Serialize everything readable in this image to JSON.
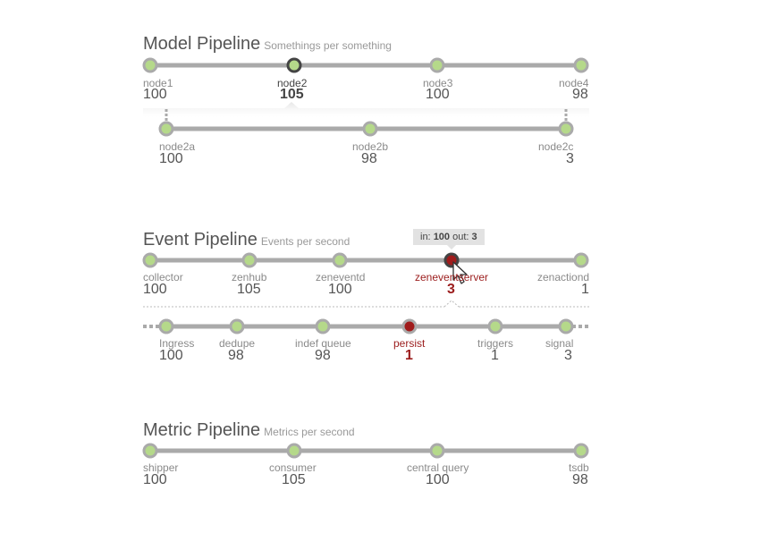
{
  "model": {
    "title": "Model Pipeline",
    "subtitle": "Somethings per something",
    "nodes": [
      {
        "label": "node1",
        "value": "100"
      },
      {
        "label": "node2",
        "value": "105"
      },
      {
        "label": "node3",
        "value": "100"
      },
      {
        "label": "node4",
        "value": "98"
      }
    ],
    "sub_nodes": [
      {
        "label": "node2a",
        "value": "100"
      },
      {
        "label": "node2b",
        "value": "98"
      },
      {
        "label": "node2c",
        "value": "3"
      }
    ]
  },
  "event": {
    "title": "Event Pipeline",
    "subtitle": "Events per second",
    "tooltip": {
      "in_label": "in:",
      "in_value": "100",
      "out_label": "out:",
      "out_value": "3"
    },
    "nodes": [
      {
        "label": "collector",
        "value": "100"
      },
      {
        "label": "zenhub",
        "value": "105"
      },
      {
        "label": "zeneventd",
        "value": "100"
      },
      {
        "label": "zeneventserver",
        "value": "3"
      },
      {
        "label": "zenactiond",
        "value": "1"
      }
    ],
    "sub_nodes": [
      {
        "label": "Ingress",
        "value": "100"
      },
      {
        "label": "dedupe",
        "value": "98"
      },
      {
        "label": "indef queue",
        "value": "98"
      },
      {
        "label": "persist",
        "value": "1"
      },
      {
        "label": "triggers",
        "value": "1"
      },
      {
        "label": "signal",
        "value": "3"
      }
    ]
  },
  "metric": {
    "title": "Metric Pipeline",
    "subtitle": "Metrics per second",
    "nodes": [
      {
        "label": "shipper",
        "value": "100"
      },
      {
        "label": "consumer",
        "value": "105"
      },
      {
        "label": "central query",
        "value": "100"
      },
      {
        "label": "tsdb",
        "value": "98"
      }
    ]
  },
  "colors": {
    "line": "#aaaaaa",
    "node_fill": "#b5d98a",
    "node_ring": "#aaaaaa",
    "selected_ring": "#444444",
    "error_fill": "#a01c1c"
  }
}
